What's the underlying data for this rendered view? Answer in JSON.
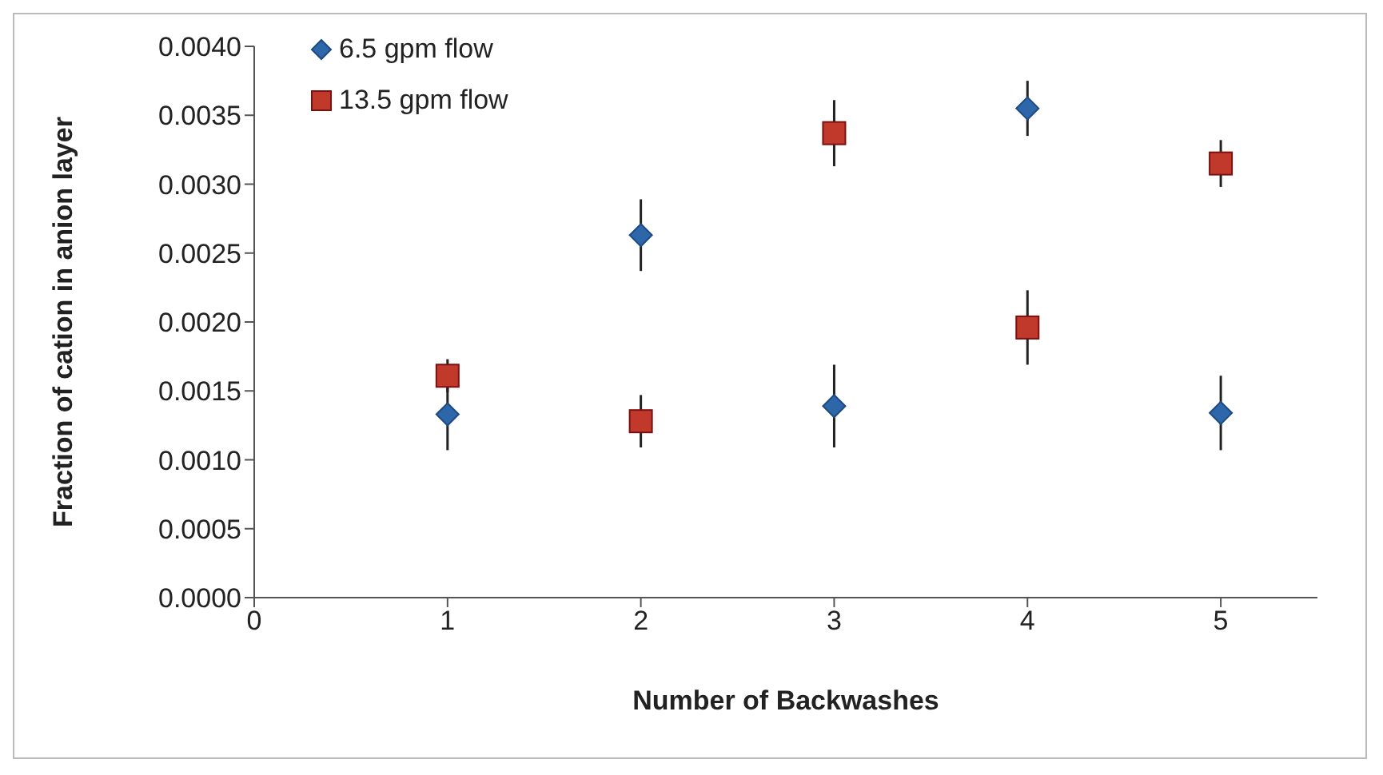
{
  "chart_data": {
    "type": "scatter",
    "xlabel": "Number of Backwashes",
    "ylabel": "Fraction of cation in anion layer",
    "xlim": [
      0,
      5.5
    ],
    "xticks": [
      0,
      1,
      2,
      3,
      4,
      5
    ],
    "ylim": [
      0,
      0.004
    ],
    "yticks": [
      {
        "value": 0,
        "label": "0.0000"
      },
      {
        "value": 0.0005,
        "label": "0.0005"
      },
      {
        "value": 0.001,
        "label": "0.0010"
      },
      {
        "value": 0.0015,
        "label": "0.0015"
      },
      {
        "value": 0.002,
        "label": "0.0020"
      },
      {
        "value": 0.0025,
        "label": "0.0025"
      },
      {
        "value": 0.003,
        "label": "0.0030"
      },
      {
        "value": 0.0035,
        "label": "0.0035"
      },
      {
        "value": 0.004,
        "label": "0.0040"
      }
    ],
    "grid": false,
    "legend": "top left",
    "series": [
      {
        "name": "6.5 gpm flow",
        "color": "#2e66aa",
        "marker": "diamond",
        "x": [
          1,
          2,
          3,
          4,
          5
        ],
        "values": [
          0.00133,
          0.00263,
          0.00139,
          0.00355,
          0.00134
        ],
        "errors": [
          0.00026,
          0.00026,
          0.0003,
          0.0002,
          0.00027
        ]
      },
      {
        "name": "13.5 gpm flow",
        "color": "#c0392b",
        "marker": "square",
        "x": [
          1,
          2,
          3,
          4,
          5
        ],
        "values": [
          0.00161,
          0.00128,
          0.00337,
          0.00196,
          0.00315
        ],
        "errors": [
          0.00012,
          0.00019,
          0.00024,
          0.00027,
          0.00017
        ]
      }
    ]
  }
}
